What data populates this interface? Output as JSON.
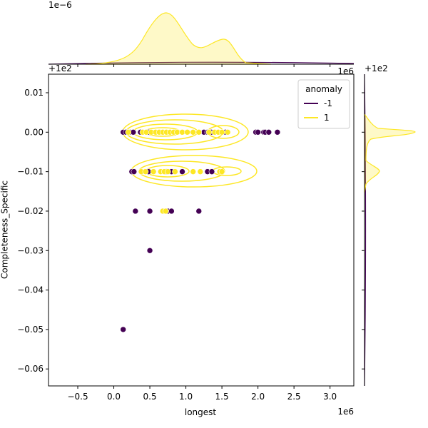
{
  "chart_data": {
    "type": "scatter",
    "xlabel": "longest",
    "ylabel": "Completeness_Specific",
    "x_offset_text": "1e6",
    "y_offset_text": "+1e2",
    "top_marginal_offset_text": "1e−6",
    "top_marginal_x_offset_text": "1e6",
    "right_marginal_offset_text": "+1e2",
    "legend_title": "anomaly",
    "legend_loc": "upper right",
    "xlim": [
      -0.906,
      3.33
    ],
    "xticks": [
      {
        "value": -0.5,
        "label": "−0.5"
      },
      {
        "value": 0,
        "label": "0.0"
      },
      {
        "value": 0.5,
        "label": "0.5"
      },
      {
        "value": 1,
        "label": "1.0"
      },
      {
        "value": 1.5,
        "label": "1.5"
      },
      {
        "value": 2,
        "label": "2.0"
      },
      {
        "value": 2.5,
        "label": "2.5"
      },
      {
        "value": 3,
        "label": "3.0"
      }
    ],
    "ylim": [
      -0.0643,
      0.0147
    ],
    "yticks": [
      0.01,
      {
        "value": 0,
        "label": "0.00"
      },
      {
        "value": -0.01,
        "label": "−0.01"
      },
      {
        "value": -0.02,
        "label": "−0.02"
      },
      {
        "value": -0.03,
        "label": "−0.03"
      },
      {
        "value": -0.04,
        "label": "−0.04"
      },
      {
        "value": -0.05,
        "label": "−0.05"
      },
      {
        "value": -0.06,
        "label": "−0.06"
      }
    ],
    "series": [
      {
        "name": "-1",
        "color": "#440154",
        "x": [
          0.13,
          0.17,
          0.22,
          0.27,
          0.37,
          0.48,
          1.25,
          1.3,
          1.35,
          1.55,
          1.97,
          2.0,
          2.08,
          2.1,
          2.15,
          2.27,
          0.25,
          0.28,
          0.48,
          0.73,
          0.8,
          0.95,
          1.3,
          1.36,
          0.3,
          0.5,
          0.75,
          0.8,
          1.18,
          0.5,
          0.13
        ],
        "values": [
          0,
          0,
          0,
          0,
          0,
          0,
          0,
          0,
          0,
          0,
          0,
          0,
          0,
          0,
          0,
          0,
          -0.01,
          -0.01,
          -0.01,
          -0.01,
          -0.01,
          -0.01,
          -0.01,
          -0.01,
          -0.02,
          -0.02,
          -0.02,
          -0.02,
          -0.02,
          -0.03,
          -0.05
        ]
      },
      {
        "name": "1",
        "color": "#fde725",
        "x": [
          0.2,
          0.4,
          0.45,
          0.52,
          0.58,
          0.63,
          0.68,
          0.73,
          0.78,
          0.83,
          0.88,
          0.95,
          1.02,
          1.1,
          1.18,
          1.32,
          1.4,
          1.45,
          1.5,
          1.58,
          0.38,
          0.44,
          0.55,
          0.65,
          0.7,
          0.75,
          0.85,
          1.1,
          1.2,
          1.47,
          1.5,
          0.68,
          0.72
        ],
        "values": [
          0,
          0,
          0,
          0,
          0,
          0,
          0,
          0,
          0,
          0,
          0,
          0,
          0,
          0,
          0,
          0,
          0,
          0,
          0,
          0,
          -0.01,
          -0.01,
          -0.01,
          -0.01,
          -0.01,
          -0.01,
          -0.01,
          -0.01,
          -0.01,
          -0.01,
          -0.01,
          -0.02,
          -0.02
        ]
      }
    ]
  }
}
